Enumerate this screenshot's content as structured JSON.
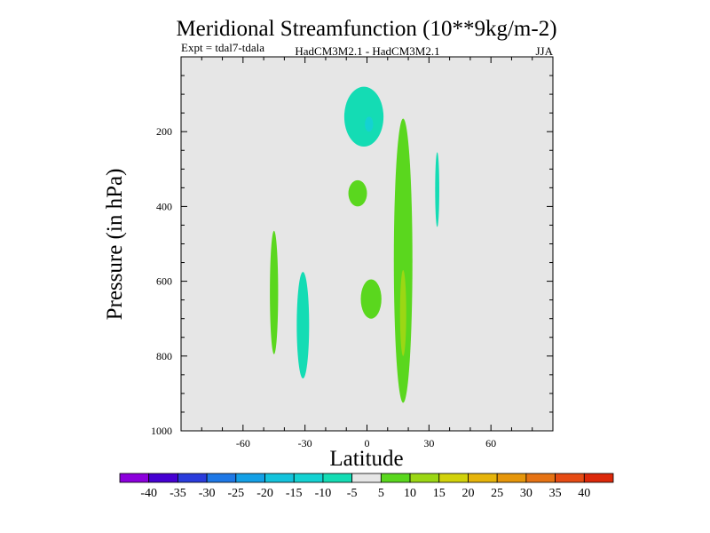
{
  "chart_data": {
    "type": "contour",
    "title": "Meridional Streamfunction (10**9kg/m-2)",
    "subtitle_left": "Expt = tdal7-tdala",
    "subtitle_center": "HadCM3M2.1 - HadCM3M2.1",
    "subtitle_right": "JJA",
    "xlabel": "Latitude",
    "ylabel": "Pressure (in hPa)",
    "xlim": [
      -90,
      90
    ],
    "ylim": [
      1000,
      0
    ],
    "x_ticks": [
      -60,
      -30,
      0,
      30,
      60
    ],
    "y_ticks": [
      200,
      400,
      600,
      800,
      1000
    ],
    "background_level_color": "#e6e6e6",
    "colorbar": {
      "boundaries": [
        "-40",
        "-35",
        "-30",
        "-25",
        "-20",
        "-15",
        "-10",
        "-5",
        "5",
        "10",
        "15",
        "20",
        "25",
        "30",
        "35",
        "40"
      ],
      "colors": [
        "#8c00dc",
        "#4600d2",
        "#2a3cdc",
        "#1e78e6",
        "#14a0e6",
        "#14c3dc",
        "#14d2d2",
        "#14dcb4",
        "#e6e6e6",
        "#5ad71e",
        "#9bd714",
        "#d2d20a",
        "#e6b40a",
        "#e6960a",
        "#e67314",
        "#e64b14",
        "#dc280a"
      ]
    },
    "features": [
      {
        "name": "upper-cyan-cell",
        "level": "-10 to -5",
        "color": "#14dcb4",
        "lat_range": [
          -11,
          8
        ],
        "p_range": [
          80,
          240
        ]
      },
      {
        "name": "upper-cyan-core",
        "level": "-15 to -10",
        "color": "#14d2d2",
        "lat_range": [
          -1,
          3
        ],
        "p_range": [
          160,
          200
        ]
      },
      {
        "name": "mid-green-blob",
        "level": "5 to 10",
        "color": "#5ad71e",
        "lat_range": [
          -9,
          0
        ],
        "p_range": [
          330,
          400
        ]
      },
      {
        "name": "narrow-cyan-strip",
        "level": "-10 to -5",
        "color": "#14dcb4",
        "lat_range": [
          33,
          35
        ],
        "p_range": [
          255,
          455
        ]
      },
      {
        "name": "left-green-strip",
        "level": "5 to 10",
        "color": "#5ad71e",
        "lat_range": [
          -47,
          -43
        ],
        "p_range": [
          465,
          795
        ]
      },
      {
        "name": "left-cyan-strip",
        "level": "-10 to -5",
        "color": "#14dcb4",
        "lat_range": [
          -34,
          -28
        ],
        "p_range": [
          575,
          860
        ]
      },
      {
        "name": "lower-green-blob",
        "level": "5 to 10",
        "color": "#5ad71e",
        "lat_range": [
          -3,
          7
        ],
        "p_range": [
          595,
          700
        ]
      },
      {
        "name": "tall-green-cell",
        "level": "5 to 10",
        "color": "#5ad71e",
        "lat_range": [
          13,
          22
        ],
        "p_range": [
          165,
          925
        ]
      },
      {
        "name": "tall-green-core",
        "level": "10 to 15",
        "color": "#9bd714",
        "lat_range": [
          16,
          19
        ],
        "p_range": [
          570,
          800
        ]
      }
    ]
  }
}
